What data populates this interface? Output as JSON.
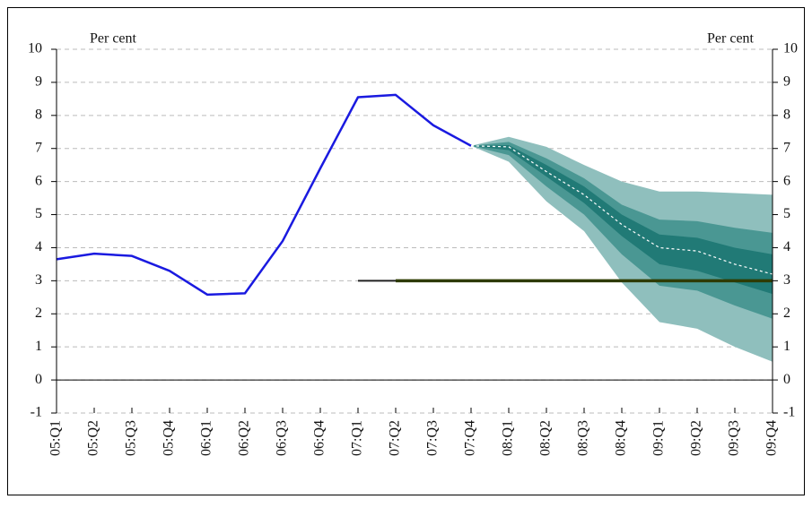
{
  "chart_data": {
    "type": "fan",
    "y_label_left": "Per cent",
    "y_label_right": "Per cent",
    "categories": [
      "05:Q1",
      "05:Q2",
      "05:Q3",
      "05:Q4",
      "06:Q1",
      "06:Q2",
      "06:Q3",
      "06:Q4",
      "07:Q1",
      "07:Q2",
      "07:Q3",
      "07:Q4",
      "08:Q1",
      "08:Q2",
      "08:Q3",
      "08:Q4",
      "09:Q1",
      "09:Q2",
      "09:Q3",
      "09:Q4"
    ],
    "ylim": [
      -1,
      10
    ],
    "yticks": [
      -1,
      0,
      1,
      2,
      3,
      4,
      5,
      6,
      7,
      8,
      9,
      10
    ],
    "y2lim": [
      -1,
      10
    ],
    "y2ticks": [
      -1,
      0,
      1,
      2,
      3,
      4,
      5,
      6,
      7,
      8,
      9,
      10
    ],
    "grid": true,
    "bands": [
      {
        "color": "#8fbfbd",
        "upper": [
          null,
          null,
          null,
          null,
          null,
          null,
          null,
          null,
          null,
          null,
          null,
          7.08,
          7.35,
          7.05,
          6.5,
          6.0,
          5.7,
          5.7,
          5.65,
          5.6
        ],
        "lower": [
          null,
          null,
          null,
          null,
          null,
          null,
          null,
          null,
          null,
          null,
          null,
          7.08,
          6.6,
          5.4,
          4.5,
          2.95,
          1.75,
          1.55,
          1.0,
          0.55
        ]
      },
      {
        "color": "#4a9793",
        "upper": [
          null,
          null,
          null,
          null,
          null,
          null,
          null,
          null,
          null,
          null,
          null,
          7.08,
          7.2,
          6.7,
          6.1,
          5.3,
          4.85,
          4.8,
          4.6,
          4.45
        ],
        "lower": [
          null,
          null,
          null,
          null,
          null,
          null,
          null,
          null,
          null,
          null,
          null,
          7.08,
          6.8,
          5.85,
          5.0,
          3.8,
          2.85,
          2.7,
          2.25,
          1.85
        ]
      },
      {
        "color": "#217a76",
        "upper": [
          null,
          null,
          null,
          null,
          null,
          null,
          null,
          null,
          null,
          null,
          null,
          7.08,
          7.1,
          6.5,
          5.85,
          5.0,
          4.4,
          4.3,
          4.0,
          3.8
        ],
        "lower": [
          null,
          null,
          null,
          null,
          null,
          null,
          null,
          null,
          null,
          null,
          null,
          7.08,
          6.95,
          6.15,
          5.35,
          4.35,
          3.5,
          3.3,
          2.95,
          2.6
        ]
      }
    ],
    "series": [
      {
        "color": "#1a1ae0",
        "style": "solid",
        "width": 2.5,
        "values": [
          3.65,
          3.82,
          3.75,
          3.3,
          2.58,
          2.62,
          4.2,
          6.4,
          8.55,
          8.62,
          7.7,
          7.08,
          null,
          null,
          null,
          null,
          null,
          null,
          null,
          null
        ]
      },
      {
        "color": "#ffffff",
        "style": "dashed",
        "width": 1.2,
        "values": [
          null,
          null,
          null,
          null,
          null,
          null,
          null,
          null,
          null,
          null,
          null,
          7.08,
          7.05,
          6.3,
          5.6,
          4.7,
          4.0,
          3.9,
          3.5,
          3.2
        ]
      },
      {
        "color": "#222222",
        "style": "solid",
        "width": 2,
        "values": [
          null,
          null,
          null,
          null,
          null,
          null,
          null,
          null,
          3,
          3,
          3,
          3,
          3,
          3,
          3,
          3,
          3,
          3,
          3,
          3
        ]
      },
      {
        "color": "#2e3b00",
        "style": "solid",
        "width": 3.5,
        "values": [
          null,
          null,
          null,
          null,
          null,
          null,
          null,
          null,
          null,
          3,
          3,
          3,
          3,
          3,
          3,
          3,
          3,
          3,
          3,
          3
        ]
      }
    ]
  }
}
